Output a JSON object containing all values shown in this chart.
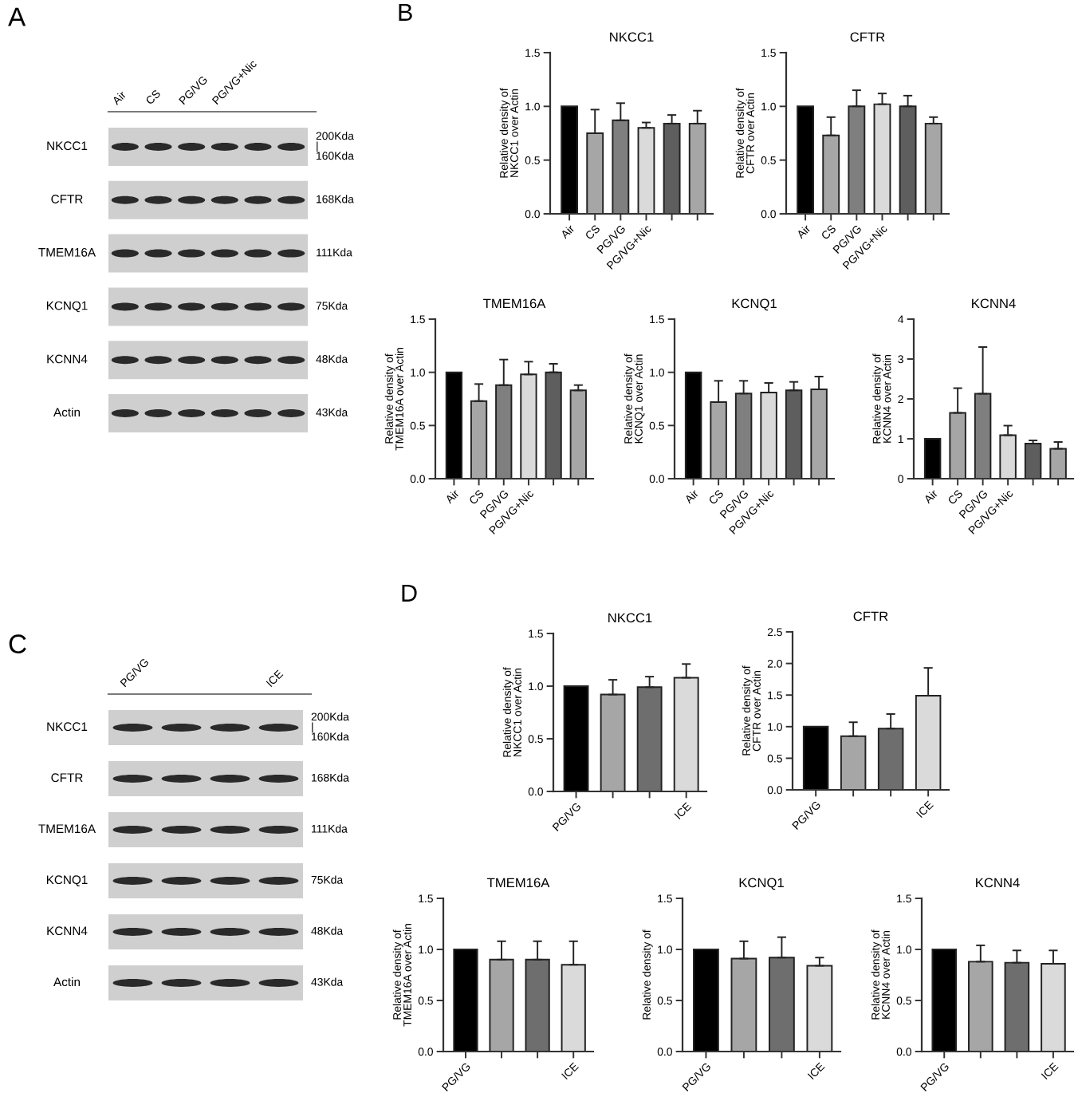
{
  "chart_data": [
    {
      "type": "other",
      "title": "A",
      "categories": [
        "Air",
        "CS",
        "PG/VG",
        "PG/VG+Nic",
        null,
        null
      ],
      "y_categories": [
        "NKCC1",
        "CFTR",
        "TMEM16A",
        "KCNQ1",
        "KCNN4",
        "Actin"
      ],
      "y2_categories": [
        "200Kda\n|\n160Kda",
        "168Kda",
        "111Kda",
        "75Kda",
        "48Kda",
        "43Kda"
      ]
    },
    {
      "type": "bar",
      "title": "NKCC1",
      "annotations": [
        "B"
      ],
      "ylabel": "Relative density of\nNKCC1 over Actin",
      "categories": [
        "Air",
        "CS",
        "PG/VG",
        "PG/VG+Nic",
        null,
        null
      ],
      "values": [
        1.0,
        0.75,
        0.87,
        0.8,
        0.84,
        0.84
      ],
      "errors": [
        null,
        [
          0.75,
          0.97
        ],
        [
          0.87,
          1.03
        ],
        [
          0.8,
          0.85
        ],
        [
          0.84,
          0.92
        ],
        [
          0.84,
          0.96
        ]
      ],
      "colors": [
        "#000000",
        "#a6a6a6",
        "#7f7f7f",
        "#dadada",
        "#5e5e5e",
        "#a6a6a6"
      ],
      "ylim": [
        0,
        1.5
      ],
      "yticks": [
        {
          "value": 0,
          "label": "0.0"
        },
        0.5,
        {
          "value": 1,
          "label": "1.0"
        },
        1.5
      ]
    },
    {
      "type": "bar",
      "title": "CFTR",
      "ylabel": "Relative density of\nCFTR over Actin",
      "categories": [
        "Air",
        "CS",
        "PG/VG",
        "PG/VG+Nic",
        null,
        null
      ],
      "values": [
        1.0,
        0.73,
        1.0,
        1.02,
        1.0,
        0.84
      ],
      "errors": [
        null,
        [
          0.73,
          0.9
        ],
        [
          1.0,
          1.15
        ],
        [
          1.02,
          1.12
        ],
        [
          1.0,
          1.1
        ],
        [
          0.84,
          0.9
        ]
      ],
      "colors": [
        "#000000",
        "#a6a6a6",
        "#7f7f7f",
        "#dadada",
        "#5e5e5e",
        "#a6a6a6"
      ],
      "ylim": [
        0,
        1.5
      ],
      "yticks": [
        {
          "value": 0,
          "label": "0.0"
        },
        0.5,
        {
          "value": 1,
          "label": "1.0"
        },
        1.5
      ]
    },
    {
      "type": "bar",
      "title": "TMEM16A",
      "ylabel": "Relative density of\nTMEM16A over Actin",
      "categories": [
        "Air",
        "CS",
        "PG/VG",
        "PG/VG+Nic",
        null,
        null
      ],
      "values": [
        1.0,
        0.73,
        0.88,
        0.98,
        1.0,
        0.83
      ],
      "errors": [
        null,
        [
          0.73,
          0.89
        ],
        [
          0.88,
          1.12
        ],
        [
          0.98,
          1.1
        ],
        [
          1.0,
          1.08
        ],
        [
          0.83,
          0.88
        ]
      ],
      "colors": [
        "#000000",
        "#a6a6a6",
        "#7f7f7f",
        "#dadada",
        "#5e5e5e",
        "#a6a6a6"
      ],
      "ylim": [
        0,
        1.5
      ],
      "yticks": [
        {
          "value": 0,
          "label": "0.0"
        },
        0.5,
        {
          "value": 1,
          "label": "1.0"
        },
        1.5
      ]
    },
    {
      "type": "bar",
      "title": "KCNQ1",
      "ylabel": "Relative density of\nKCNQ1 over Actin",
      "categories": [
        "Air",
        "CS",
        "PG/VG",
        "PG/VG+Nic",
        null,
        null
      ],
      "values": [
        1.0,
        0.72,
        0.8,
        0.81,
        0.83,
        0.84
      ],
      "errors": [
        null,
        [
          0.72,
          0.92
        ],
        [
          0.8,
          0.92
        ],
        [
          0.81,
          0.9
        ],
        [
          0.83,
          0.91
        ],
        [
          0.84,
          0.96
        ]
      ],
      "colors": [
        "#000000",
        "#a6a6a6",
        "#7f7f7f",
        "#dadada",
        "#5e5e5e",
        "#a6a6a6"
      ],
      "ylim": [
        0,
        1.5
      ],
      "yticks": [
        {
          "value": 0,
          "label": "0.0"
        },
        0.5,
        {
          "value": 1,
          "label": "1.0"
        },
        1.5
      ]
    },
    {
      "type": "bar",
      "title": "KCNN4",
      "ylabel": "Relative density of\nKCNN4 over Actin",
      "categories": [
        "Air",
        "CS",
        "PG/VG",
        "PG/VG+Nic",
        null,
        null
      ],
      "values": [
        1.0,
        1.65,
        2.13,
        1.09,
        0.88,
        0.75
      ],
      "errors": [
        null,
        [
          1.65,
          2.27
        ],
        [
          2.13,
          3.3
        ],
        [
          1.09,
          1.33
        ],
        [
          0.88,
          0.96
        ],
        [
          0.75,
          0.92
        ]
      ],
      "colors": [
        "#000000",
        "#a6a6a6",
        "#7f7f7f",
        "#dadada",
        "#5e5e5e",
        "#a6a6a6"
      ],
      "ylim": [
        0,
        4
      ],
      "yticks": [
        0,
        1,
        2,
        3,
        4
      ]
    },
    {
      "type": "other",
      "title": "C",
      "categories": [
        "PG/VG",
        null,
        null,
        "ICE"
      ],
      "y_categories": [
        "NKCC1",
        "CFTR",
        "TMEM16A",
        "KCNQ1",
        "KCNN4",
        "Actin"
      ],
      "y2_categories": [
        "200Kda\n|\n160Kda",
        "168Kda",
        "111Kda",
        "75Kda",
        "48Kda",
        "43Kda"
      ]
    },
    {
      "type": "bar",
      "title": "NKCC1",
      "annotations": [
        "D"
      ],
      "ylabel": "Relative density of\nNKCC1 over Actin",
      "categories": [
        "PG/VG",
        null,
        null,
        "ICE"
      ],
      "values": [
        1.0,
        0.92,
        0.99,
        1.08
      ],
      "errors": [
        null,
        [
          0.92,
          1.06
        ],
        [
          0.99,
          1.09
        ],
        [
          1.08,
          1.21
        ]
      ],
      "colors": [
        "#000000",
        "#a6a6a6",
        "#6e6e6e",
        "#dadada"
      ],
      "ylim": [
        0,
        1.5
      ],
      "yticks": [
        {
          "value": 0,
          "label": "0.0"
        },
        0.5,
        {
          "value": 1,
          "label": "1.0"
        },
        1.5
      ]
    },
    {
      "type": "bar",
      "title": "CFTR",
      "ylabel": "Relative density of\nCFTR over Actin",
      "categories": [
        "PG/VG",
        null,
        null,
        "ICE"
      ],
      "values": [
        1.0,
        0.85,
        0.97,
        1.49
      ],
      "errors": [
        null,
        [
          0.85,
          1.07
        ],
        [
          0.97,
          1.2
        ],
        [
          1.49,
          1.93
        ]
      ],
      "colors": [
        "#000000",
        "#a6a6a6",
        "#6e6e6e",
        "#dadada"
      ],
      "ylim": [
        0,
        2.5
      ],
      "yticks": [
        {
          "value": 0,
          "label": "0.0"
        },
        0.5,
        {
          "value": 1,
          "label": "1.0"
        },
        1.5,
        {
          "value": 2,
          "label": "2.0"
        },
        2.5
      ]
    },
    {
      "type": "bar",
      "title": "TMEM16A",
      "ylabel": "Relative density of\nTMEM16A over Actin",
      "categories": [
        "PG/VG",
        null,
        null,
        "ICE"
      ],
      "values": [
        1.0,
        0.9,
        0.9,
        0.85
      ],
      "errors": [
        null,
        [
          0.9,
          1.08
        ],
        [
          0.9,
          1.08
        ],
        [
          0.85,
          1.08
        ]
      ],
      "colors": [
        "#000000",
        "#a6a6a6",
        "#6e6e6e",
        "#dadada"
      ],
      "ylim": [
        0,
        1.5
      ],
      "yticks": [
        {
          "value": 0,
          "label": "0.0"
        },
        0.5,
        {
          "value": 1,
          "label": "1.0"
        },
        1.5
      ]
    },
    {
      "type": "bar",
      "title": "KCNQ1",
      "ylabel": "Relative density of",
      "categories": [
        "PG/VG",
        null,
        null,
        "ICE"
      ],
      "values": [
        1.0,
        0.91,
        0.92,
        0.84
      ],
      "errors": [
        null,
        [
          0.91,
          1.08
        ],
        [
          0.92,
          1.12
        ],
        [
          0.84,
          0.92
        ]
      ],
      "colors": [
        "#000000",
        "#a6a6a6",
        "#6e6e6e",
        "#dadada"
      ],
      "ylim": [
        0,
        1.5
      ],
      "yticks": [
        {
          "value": 0,
          "label": "0.0"
        },
        0.5,
        {
          "value": 1,
          "label": "1.0"
        },
        1.5
      ]
    },
    {
      "type": "bar",
      "title": "KCNN4",
      "ylabel": "Relative density of\nKCNN4 over Actin",
      "categories": [
        "PG/VG",
        null,
        null,
        "ICE"
      ],
      "values": [
        1.0,
        0.88,
        0.87,
        0.86
      ],
      "errors": [
        null,
        [
          0.88,
          1.04
        ],
        [
          0.87,
          0.99
        ],
        [
          0.86,
          0.99
        ]
      ],
      "colors": [
        "#000000",
        "#a6a6a6",
        "#6e6e6e",
        "#dadada"
      ],
      "ylim": [
        0,
        1.5
      ],
      "yticks": [
        {
          "value": 0,
          "label": "0.0"
        },
        0.5,
        {
          "value": 1,
          "label": "1.0"
        },
        1.5
      ]
    }
  ]
}
